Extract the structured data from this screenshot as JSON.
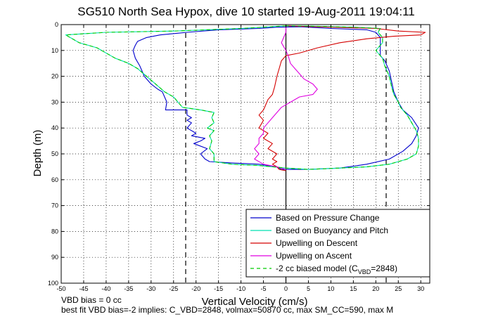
{
  "chart_data": {
    "type": "line",
    "title": "SG510 North Sea Hypox, dive 10 started 19-Aug-2011 19:04:11",
    "xlabel": "Vertical Velocity (cm/s)",
    "ylabel": "Depth (m)",
    "xlim": [
      -50,
      32
    ],
    "ylim": [
      0,
      100
    ],
    "y_reversed": true,
    "grid": true,
    "xticks": [
      -50,
      -45,
      -40,
      -35,
      -30,
      -25,
      -20,
      -15,
      -10,
      -5,
      0,
      5,
      10,
      15,
      20,
      25,
      30
    ],
    "yticks": [
      0,
      10,
      20,
      30,
      40,
      50,
      60,
      70,
      80,
      90,
      100
    ],
    "legend_position": "bottom-right",
    "vlines": [
      {
        "x": -22.3,
        "style": "dashed",
        "color": "#000000"
      },
      {
        "x": 22.3,
        "style": "dashed",
        "color": "#000000"
      },
      {
        "x": 0,
        "style": "solid",
        "color": "#000000"
      }
    ],
    "series": [
      {
        "name": "Based on Pressure Change",
        "color": "#0000cc",
        "style": "solid",
        "points": [
          [
            0,
            0.5
          ],
          [
            5,
            0.8
          ],
          [
            -2,
            1
          ],
          [
            -6,
            1.5
          ],
          [
            -15,
            2
          ],
          [
            -22,
            3
          ],
          [
            -28,
            4
          ],
          [
            -31,
            5
          ],
          [
            -33,
            6.5
          ],
          [
            -33.5,
            8
          ],
          [
            -34,
            10
          ],
          [
            -33.5,
            13
          ],
          [
            -32.5,
            16
          ],
          [
            -31.5,
            20
          ],
          [
            -30,
            23
          ],
          [
            -28.5,
            25
          ],
          [
            -27.5,
            26
          ],
          [
            -27,
            28
          ],
          [
            -26.5,
            30
          ],
          [
            -26.8,
            33
          ],
          [
            -22,
            33
          ],
          [
            -22,
            35
          ],
          [
            -21,
            36
          ],
          [
            -22,
            37
          ],
          [
            -21,
            38
          ],
          [
            -22,
            40
          ],
          [
            -20,
            42
          ],
          [
            -21,
            43
          ],
          [
            -18,
            44
          ],
          [
            -19,
            45
          ],
          [
            -20.5,
            46
          ],
          [
            -17.5,
            48
          ],
          [
            -19,
            50
          ],
          [
            -18,
            52
          ],
          [
            -17,
            53
          ],
          [
            -12,
            53.5
          ],
          [
            -6,
            54
          ],
          [
            -2,
            55
          ],
          [
            -1,
            56
          ],
          [
            5,
            56
          ],
          [
            12,
            55.5
          ],
          [
            18,
            54
          ],
          [
            23,
            52
          ],
          [
            26,
            49
          ],
          [
            28,
            46
          ],
          [
            29,
            43
          ],
          [
            29.5,
            40
          ],
          [
            28,
            36
          ],
          [
            26,
            33
          ],
          [
            25,
            30
          ],
          [
            24,
            26
          ],
          [
            23.5,
            22
          ],
          [
            23,
            18
          ],
          [
            22,
            14
          ],
          [
            21,
            12
          ],
          [
            21,
            8
          ],
          [
            21,
            5
          ],
          [
            20,
            3
          ],
          [
            18,
            2
          ],
          [
            10,
            1.5
          ],
          [
            5,
            1
          ],
          [
            0,
            0.5
          ]
        ]
      },
      {
        "name": "Based on Buoyancy and Pitch",
        "color": "#00e0b0",
        "style": "solid",
        "points": [
          [
            0,
            0.5
          ],
          [
            -10,
            1.5
          ],
          [
            -25,
            2.5
          ],
          [
            -40,
            3
          ],
          [
            -49,
            4
          ],
          [
            -48,
            5
          ],
          [
            -46,
            7
          ],
          [
            -44,
            8
          ],
          [
            -42,
            9
          ],
          [
            -40,
            11
          ],
          [
            -38,
            13
          ],
          [
            -35,
            15
          ],
          [
            -33,
            17
          ],
          [
            -31,
            20
          ],
          [
            -29,
            23
          ],
          [
            -27,
            26
          ],
          [
            -25,
            28
          ],
          [
            -24,
            30
          ],
          [
            -23,
            32
          ],
          [
            -19,
            33
          ],
          [
            -16,
            34
          ],
          [
            -16.5,
            36
          ],
          [
            -16,
            38
          ],
          [
            -17.5,
            40
          ],
          [
            -16,
            41
          ],
          [
            -17,
            43
          ],
          [
            -16.5,
            45
          ],
          [
            -17,
            48
          ],
          [
            -16,
            50
          ],
          [
            -16,
            53
          ],
          [
            -12,
            54
          ],
          [
            -6,
            54.5
          ],
          [
            0,
            55.5
          ],
          [
            5,
            56
          ],
          [
            12,
            55.5
          ],
          [
            18,
            55
          ],
          [
            23,
            54
          ],
          [
            27,
            52
          ],
          [
            29,
            50
          ],
          [
            29.5,
            47
          ],
          [
            29.5,
            44
          ],
          [
            29,
            41
          ],
          [
            28,
            38
          ],
          [
            27,
            35
          ],
          [
            25.5,
            32
          ],
          [
            25,
            30
          ],
          [
            24,
            27
          ],
          [
            23.5,
            24
          ],
          [
            23,
            20
          ],
          [
            22,
            16
          ],
          [
            21.5,
            13
          ],
          [
            20,
            10
          ],
          [
            21.5,
            7
          ],
          [
            21.5,
            5
          ],
          [
            20.5,
            3
          ],
          [
            21,
            1.5
          ],
          [
            15,
            1
          ],
          [
            5,
            0.6
          ],
          [
            0,
            0.5
          ]
        ]
      },
      {
        "name": "Upwelling on Descent",
        "color": "#d40000",
        "style": "solid",
        "points": [
          [
            0,
            0.5
          ],
          [
            10,
            1
          ],
          [
            20,
            1.5
          ],
          [
            25,
            2.5
          ],
          [
            31,
            3
          ],
          [
            30,
            4
          ],
          [
            24,
            4.5
          ],
          [
            18,
            5.5
          ],
          [
            12,
            7
          ],
          [
            7,
            9
          ],
          [
            3,
            11
          ],
          [
            0,
            12
          ],
          [
            -1,
            14
          ],
          [
            -1.5,
            17
          ],
          [
            -2,
            20
          ],
          [
            -2.5,
            24
          ],
          [
            -3,
            27
          ],
          [
            -4,
            29
          ],
          [
            -4.5,
            31
          ],
          [
            -5,
            33
          ],
          [
            -6,
            35
          ],
          [
            -5,
            37
          ],
          [
            -6,
            40
          ],
          [
            -4,
            42
          ],
          [
            -5,
            44
          ],
          [
            -3,
            46
          ],
          [
            -4,
            48
          ],
          [
            -2,
            50
          ],
          [
            -3,
            52
          ],
          [
            -2,
            53
          ],
          [
            -3,
            54
          ],
          [
            -2,
            55
          ],
          [
            -1.5,
            56
          ],
          [
            0,
            56.5
          ]
        ]
      },
      {
        "name": "Upwelling on Ascent",
        "color": "#e000e0",
        "style": "solid",
        "points": [
          [
            0,
            56
          ],
          [
            -2,
            55
          ],
          [
            -5,
            54
          ],
          [
            -7,
            52
          ],
          [
            -6,
            50
          ],
          [
            -7,
            48
          ],
          [
            -6,
            46
          ],
          [
            -6,
            44
          ],
          [
            -5,
            42
          ],
          [
            -5,
            40
          ],
          [
            -4,
            38
          ],
          [
            -3,
            36
          ],
          [
            -2,
            34
          ],
          [
            -1,
            32
          ],
          [
            1,
            30
          ],
          [
            3,
            28
          ],
          [
            6,
            27
          ],
          [
            7,
            25
          ],
          [
            6,
            23
          ],
          [
            4,
            21
          ],
          [
            3,
            19
          ],
          [
            2,
            17
          ],
          [
            1,
            15
          ],
          [
            0.5,
            12
          ],
          [
            0,
            10
          ],
          [
            -1,
            7
          ],
          [
            -0.5,
            5
          ],
          [
            0,
            3
          ],
          [
            0,
            1
          ]
        ]
      },
      {
        "name": "-2 cc biased model (C_VBD=2848)",
        "legend_main": "-2 cc biased model (C",
        "legend_sub": "VBD",
        "legend_tail": "=2848)",
        "color": "#00cc00",
        "style": "dashed",
        "points": [
          [
            0,
            0.5
          ],
          [
            -10,
            1.5
          ],
          [
            -25,
            2.5
          ],
          [
            -40,
            3
          ],
          [
            -49,
            4
          ],
          [
            -48,
            5
          ],
          [
            -46,
            7
          ],
          [
            -44,
            8
          ],
          [
            -42,
            9
          ],
          [
            -40,
            11
          ],
          [
            -38,
            13
          ],
          [
            -35,
            15
          ],
          [
            -33,
            17
          ],
          [
            -31,
            20
          ],
          [
            -29,
            23
          ],
          [
            -27,
            26
          ],
          [
            -25,
            28
          ],
          [
            -24,
            30
          ],
          [
            -23,
            32
          ],
          [
            -19,
            33
          ],
          [
            -16,
            34
          ],
          [
            -16.5,
            36
          ],
          [
            -16,
            38
          ],
          [
            -17.5,
            40
          ],
          [
            -16,
            41
          ],
          [
            -17,
            43
          ],
          [
            -16.5,
            45
          ],
          [
            -17,
            48
          ],
          [
            -16,
            50
          ],
          [
            -16,
            53
          ],
          [
            -12,
            54
          ],
          [
            -6,
            54.5
          ],
          [
            0,
            55.5
          ],
          [
            5,
            56
          ],
          [
            12,
            55.5
          ],
          [
            18,
            55
          ],
          [
            23,
            54
          ],
          [
            27,
            52
          ],
          [
            29,
            50
          ],
          [
            29.5,
            47
          ],
          [
            29.5,
            44
          ],
          [
            29,
            41
          ],
          [
            28,
            38
          ],
          [
            27,
            35
          ],
          [
            25.5,
            32
          ],
          [
            25,
            30
          ],
          [
            24,
            27
          ],
          [
            23.5,
            24
          ],
          [
            23,
            20
          ],
          [
            22,
            16
          ],
          [
            21.5,
            13
          ],
          [
            20,
            10
          ],
          [
            21.5,
            7
          ],
          [
            21.5,
            5
          ],
          [
            20.5,
            3
          ],
          [
            21,
            1.5
          ],
          [
            15,
            1
          ],
          [
            5,
            0.6
          ],
          [
            0,
            0.5
          ]
        ]
      }
    ],
    "annotations": [
      "VBD bias = 0 cc",
      "best fit VBD bias=-2 implies: C_VBD=2848, volmax=50870 cc, max SM_CC=590, max M"
    ]
  }
}
